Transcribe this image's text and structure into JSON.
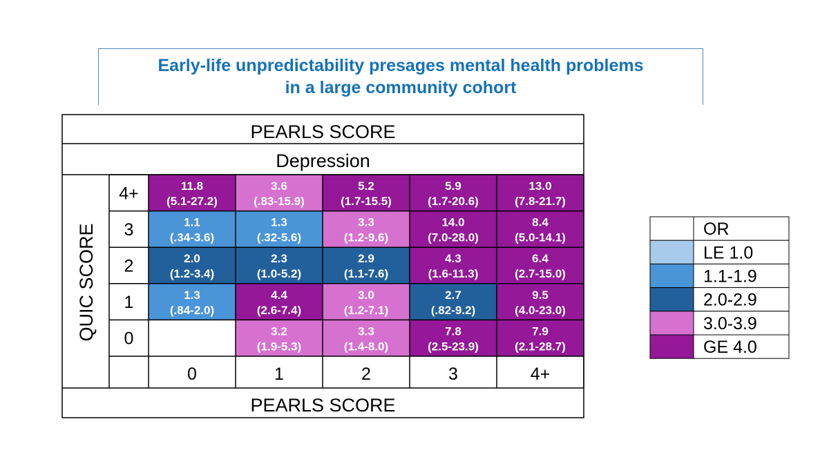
{
  "title": {
    "line1": "Early-life unpredictability presages mental health problems",
    "line2": "in a large community cohort"
  },
  "chart_data": {
    "type": "heatmap",
    "top_header": "PEARLS SCORE",
    "subtitle": "Depression",
    "xlabel": "PEARLS SCORE",
    "ylabel": "QUIC SCORE",
    "x_categories": [
      "0",
      "1",
      "2",
      "3",
      "4+"
    ],
    "y_categories": [
      "4+",
      "3",
      "2",
      "1",
      "0"
    ],
    "cells": [
      [
        {
          "or": "11.8",
          "ci": "(5.1-27.2)",
          "bin": "GE 4.0"
        },
        {
          "or": "3.6",
          "ci": "(.83-15.9)",
          "bin": "3.0-3.9"
        },
        {
          "or": "5.2",
          "ci": "(1.7-15.5)",
          "bin": "GE 4.0"
        },
        {
          "or": "5.9",
          "ci": "(1.7-20.6)",
          "bin": "GE 4.0"
        },
        {
          "or": "13.0",
          "ci": "(7.8-21.7)",
          "bin": "GE 4.0"
        }
      ],
      [
        {
          "or": "1.1",
          "ci": "(.34-3.6)",
          "bin": "1.1-1.9"
        },
        {
          "or": "1.3",
          "ci": "(.32-5.6)",
          "bin": "1.1-1.9"
        },
        {
          "or": "3.3",
          "ci": "(1.2-9.6)",
          "bin": "3.0-3.9"
        },
        {
          "or": "14.0",
          "ci": "(7.0-28.0)",
          "bin": "GE 4.0"
        },
        {
          "or": "8.4",
          "ci": "(5.0-14.1)",
          "bin": "GE 4.0"
        }
      ],
      [
        {
          "or": "2.0",
          "ci": "(1.2-3.4)",
          "bin": "2.0-2.9"
        },
        {
          "or": "2.3",
          "ci": "(1.0-5.2)",
          "bin": "2.0-2.9"
        },
        {
          "or": "2.9",
          "ci": "(1.1-7.6)",
          "bin": "2.0-2.9"
        },
        {
          "or": "4.3",
          "ci": "(1.6-11.3)",
          "bin": "GE 4.0"
        },
        {
          "or": "6.4",
          "ci": "(2.7-15.0)",
          "bin": "GE 4.0"
        }
      ],
      [
        {
          "or": "1.3",
          "ci": "(.84-2.0)",
          "bin": "1.1-1.9"
        },
        {
          "or": "4.4",
          "ci": "(2.6-7.4)",
          "bin": "GE 4.0"
        },
        {
          "or": "3.0",
          "ci": "(1.2-7.1)",
          "bin": "3.0-3.9"
        },
        {
          "or": "2.7",
          "ci": "(.82-9.2)",
          "bin": "2.0-2.9"
        },
        {
          "or": "9.5",
          "ci": "(4.0-23.0)",
          "bin": "GE 4.0"
        }
      ],
      [
        {
          "or": "",
          "ci": "",
          "bin": "none"
        },
        {
          "or": "3.2",
          "ci": "(1.9-5.3)",
          "bin": "3.0-3.9"
        },
        {
          "or": "3.3",
          "ci": "(1.4-8.0)",
          "bin": "3.0-3.9"
        },
        {
          "or": "7.8",
          "ci": "(2.5-23.9)",
          "bin": "GE 4.0"
        },
        {
          "or": "7.9",
          "ci": "(2.1-28.7)",
          "bin": "GE 4.0"
        }
      ]
    ],
    "legend": {
      "header": "OR",
      "entries": [
        {
          "label": "LE 1.0",
          "color": "#a8cbeb"
        },
        {
          "label": "1.1-1.9",
          "color": "#4a94d8"
        },
        {
          "label": "2.0-2.9",
          "color": "#22609c"
        },
        {
          "label": "3.0-3.9",
          "color": "#d671cf"
        },
        {
          "label": "GE 4.0",
          "color": "#941897"
        }
      ]
    }
  }
}
